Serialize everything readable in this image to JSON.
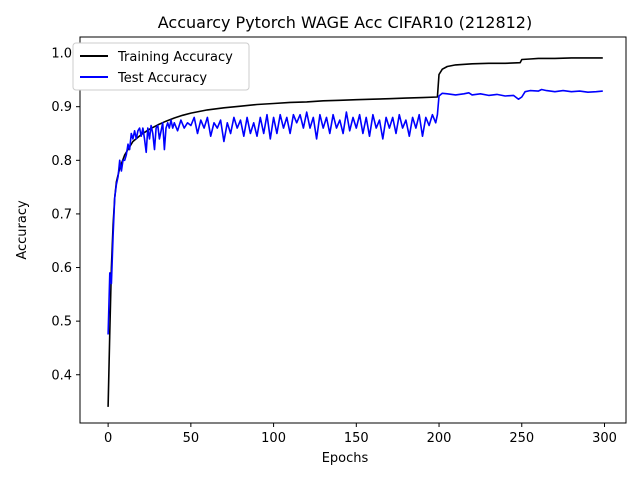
{
  "chart_data": {
    "type": "line",
    "title": "Accuarcy Pytorch WAGE Acc CIFAR10 (212812)",
    "xlabel": "Epochs",
    "ylabel": "Accuracy",
    "xlim": [
      -17,
      313
    ],
    "ylim": [
      0.31,
      1.03
    ],
    "xticks": [
      0,
      50,
      100,
      150,
      200,
      250,
      300
    ],
    "yticks": [
      0.4,
      0.5,
      0.6,
      0.7,
      0.8,
      0.9,
      1.0
    ],
    "ytick_labels": [
      "0.4",
      "0.5",
      "0.6",
      "0.7",
      "0.8",
      "0.9",
      "1.0"
    ],
    "grid": false,
    "legend_position": "top-left",
    "series": [
      {
        "name": "Training Accuracy",
        "color": "#000000",
        "points": [
          [
            0,
            0.34
          ],
          [
            1,
            0.48
          ],
          [
            2,
            0.6
          ],
          [
            3,
            0.68
          ],
          [
            4,
            0.73
          ],
          [
            5,
            0.76
          ],
          [
            7,
            0.785
          ],
          [
            10,
            0.81
          ],
          [
            15,
            0.835
          ],
          [
            20,
            0.848
          ],
          [
            25,
            0.858
          ],
          [
            30,
            0.866
          ],
          [
            35,
            0.873
          ],
          [
            40,
            0.879
          ],
          [
            45,
            0.884
          ],
          [
            50,
            0.888
          ],
          [
            55,
            0.891
          ],
          [
            60,
            0.894
          ],
          [
            70,
            0.898
          ],
          [
            80,
            0.901
          ],
          [
            90,
            0.904
          ],
          [
            100,
            0.906
          ],
          [
            110,
            0.908
          ],
          [
            120,
            0.909
          ],
          [
            130,
            0.911
          ],
          [
            140,
            0.912
          ],
          [
            150,
            0.913
          ],
          [
            160,
            0.914
          ],
          [
            170,
            0.915
          ],
          [
            180,
            0.916
          ],
          [
            190,
            0.917
          ],
          [
            199,
            0.918
          ],
          [
            200,
            0.96
          ],
          [
            202,
            0.97
          ],
          [
            205,
            0.975
          ],
          [
            210,
            0.978
          ],
          [
            220,
            0.98
          ],
          [
            230,
            0.981
          ],
          [
            240,
            0.981
          ],
          [
            249,
            0.982
          ],
          [
            250,
            0.988
          ],
          [
            255,
            0.989
          ],
          [
            260,
            0.99
          ],
          [
            270,
            0.99
          ],
          [
            280,
            0.991
          ],
          [
            290,
            0.991
          ],
          [
            299,
            0.991
          ]
        ]
      },
      {
        "name": "Test Accuracy",
        "color": "#0000ff",
        "points": [
          [
            0,
            0.475
          ],
          [
            1,
            0.59
          ],
          [
            2,
            0.57
          ],
          [
            3,
            0.66
          ],
          [
            4,
            0.73
          ],
          [
            5,
            0.755
          ],
          [
            6,
            0.77
          ],
          [
            7,
            0.8
          ],
          [
            8,
            0.78
          ],
          [
            9,
            0.8
          ],
          [
            10,
            0.8
          ],
          [
            11,
            0.81
          ],
          [
            12,
            0.83
          ],
          [
            13,
            0.82
          ],
          [
            14,
            0.85
          ],
          [
            15,
            0.84
          ],
          [
            16,
            0.855
          ],
          [
            17,
            0.84
          ],
          [
            18,
            0.855
          ],
          [
            19,
            0.86
          ],
          [
            20,
            0.845
          ],
          [
            21,
            0.86
          ],
          [
            22,
            0.84
          ],
          [
            23,
            0.815
          ],
          [
            24,
            0.86
          ],
          [
            25,
            0.84
          ],
          [
            26,
            0.865
          ],
          [
            27,
            0.85
          ],
          [
            28,
            0.82
          ],
          [
            29,
            0.86
          ],
          [
            30,
            0.865
          ],
          [
            31,
            0.84
          ],
          [
            32,
            0.855
          ],
          [
            33,
            0.87
          ],
          [
            34,
            0.82
          ],
          [
            35,
            0.86
          ],
          [
            36,
            0.87
          ],
          [
            37,
            0.86
          ],
          [
            38,
            0.875
          ],
          [
            39,
            0.86
          ],
          [
            40,
            0.87
          ],
          [
            42,
            0.855
          ],
          [
            44,
            0.875
          ],
          [
            46,
            0.86
          ],
          [
            48,
            0.87
          ],
          [
            50,
            0.865
          ],
          [
            52,
            0.88
          ],
          [
            54,
            0.85
          ],
          [
            56,
            0.875
          ],
          [
            58,
            0.86
          ],
          [
            60,
            0.88
          ],
          [
            62,
            0.845
          ],
          [
            64,
            0.87
          ],
          [
            66,
            0.86
          ],
          [
            68,
            0.875
          ],
          [
            70,
            0.835
          ],
          [
            72,
            0.87
          ],
          [
            74,
            0.85
          ],
          [
            76,
            0.88
          ],
          [
            78,
            0.86
          ],
          [
            80,
            0.875
          ],
          [
            82,
            0.845
          ],
          [
            84,
            0.88
          ],
          [
            86,
            0.85
          ],
          [
            88,
            0.87
          ],
          [
            90,
            0.845
          ],
          [
            92,
            0.88
          ],
          [
            94,
            0.85
          ],
          [
            96,
            0.885
          ],
          [
            98,
            0.84
          ],
          [
            100,
            0.88
          ],
          [
            102,
            0.85
          ],
          [
            104,
            0.885
          ],
          [
            106,
            0.86
          ],
          [
            108,
            0.88
          ],
          [
            110,
            0.85
          ],
          [
            112,
            0.885
          ],
          [
            114,
            0.87
          ],
          [
            116,
            0.885
          ],
          [
            118,
            0.86
          ],
          [
            120,
            0.89
          ],
          [
            122,
            0.86
          ],
          [
            124,
            0.88
          ],
          [
            126,
            0.84
          ],
          [
            128,
            0.885
          ],
          [
            130,
            0.86
          ],
          [
            132,
            0.88
          ],
          [
            134,
            0.85
          ],
          [
            136,
            0.885
          ],
          [
            138,
            0.86
          ],
          [
            140,
            0.875
          ],
          [
            142,
            0.85
          ],
          [
            144,
            0.89
          ],
          [
            146,
            0.855
          ],
          [
            148,
            0.88
          ],
          [
            150,
            0.86
          ],
          [
            152,
            0.885
          ],
          [
            154,
            0.85
          ],
          [
            156,
            0.88
          ],
          [
            158,
            0.845
          ],
          [
            160,
            0.885
          ],
          [
            162,
            0.86
          ],
          [
            164,
            0.875
          ],
          [
            166,
            0.84
          ],
          [
            168,
            0.88
          ],
          [
            170,
            0.86
          ],
          [
            172,
            0.88
          ],
          [
            174,
            0.85
          ],
          [
            176,
            0.885
          ],
          [
            178,
            0.86
          ],
          [
            180,
            0.875
          ],
          [
            182,
            0.845
          ],
          [
            184,
            0.88
          ],
          [
            186,
            0.86
          ],
          [
            188,
            0.885
          ],
          [
            190,
            0.845
          ],
          [
            192,
            0.88
          ],
          [
            194,
            0.865
          ],
          [
            196,
            0.885
          ],
          [
            198,
            0.87
          ],
          [
            199,
            0.885
          ],
          [
            200,
            0.92
          ],
          [
            202,
            0.925
          ],
          [
            205,
            0.924
          ],
          [
            210,
            0.922
          ],
          [
            215,
            0.924
          ],
          [
            218,
            0.926
          ],
          [
            220,
            0.922
          ],
          [
            225,
            0.924
          ],
          [
            230,
            0.921
          ],
          [
            235,
            0.923
          ],
          [
            240,
            0.92
          ],
          [
            245,
            0.921
          ],
          [
            248,
            0.914
          ],
          [
            250,
            0.918
          ],
          [
            252,
            0.928
          ],
          [
            255,
            0.93
          ],
          [
            260,
            0.929
          ],
          [
            262,
            0.932
          ],
          [
            265,
            0.93
          ],
          [
            270,
            0.928
          ],
          [
            275,
            0.93
          ],
          [
            280,
            0.928
          ],
          [
            285,
            0.929
          ],
          [
            290,
            0.927
          ],
          [
            295,
            0.928
          ],
          [
            299,
            0.929
          ]
        ]
      }
    ]
  }
}
